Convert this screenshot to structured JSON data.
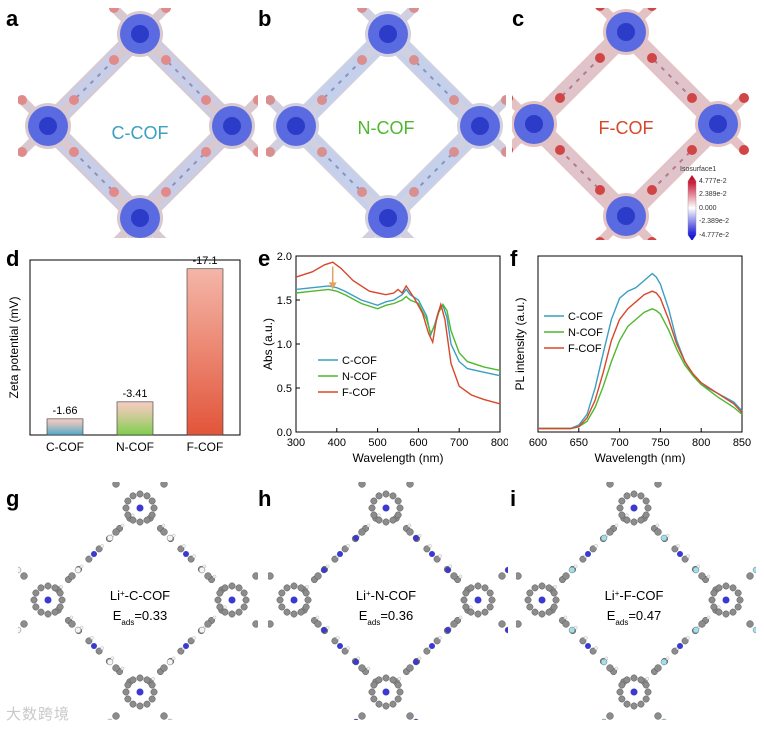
{
  "figure": {
    "letters": [
      "a",
      "b",
      "c",
      "d",
      "e",
      "f",
      "g",
      "h",
      "i"
    ],
    "esp_maps": [
      {
        "label": "C-COF",
        "label_color": "#3a9fc2"
      },
      {
        "label": "N-COF",
        "label_color": "#4fb82e"
      },
      {
        "label": "F-COF",
        "label_color": "#d9472b"
      }
    ],
    "colorbar": {
      "title": "Isosurface1",
      "ticks": [
        "4.777e-2",
        "2.389e-2",
        "0.000",
        "-2.389e-2",
        "-4.777e-2"
      ]
    },
    "structures": [
      {
        "label_prefix": "Li",
        "label_sup": "+",
        "label_suffix": "-C-COF",
        "eads_prefix": "E",
        "eads_sub": "ads",
        "eads_value": "=0.33"
      },
      {
        "label_prefix": "Li",
        "label_sup": "+",
        "label_suffix": "-N-COF",
        "eads_prefix": "E",
        "eads_sub": "ads",
        "eads_value": "=0.36"
      },
      {
        "label_prefix": "Li",
        "label_sup": "+",
        "label_suffix": "-F-COF",
        "eads_prefix": "E",
        "eads_sub": "ads",
        "eads_value": "=0.47"
      }
    ],
    "watermark": "大数跨境"
  },
  "chart_data": [
    {
      "type": "bar",
      "panel": "d",
      "ylabel": "Zeta potential (mV)",
      "categories": [
        "C-COF",
        "N-COF",
        "F-COF"
      ],
      "values": [
        -1.66,
        -3.41,
        -17.1
      ],
      "value_labels": [
        "-1.66",
        "-3.41",
        "-17.1"
      ],
      "colors": [
        "#4aa9c8",
        "#7ccf4a",
        "#e2553a"
      ],
      "ylim": [
        0,
        -18
      ]
    },
    {
      "type": "line",
      "panel": "e",
      "xlabel": "Wavelength (nm)",
      "ylabel": "Abs (a.u.)",
      "xlim": [
        300,
        800
      ],
      "ylim": [
        0,
        2.0
      ],
      "xticks": [
        "300",
        "400",
        "500",
        "600",
        "700",
        "800"
      ],
      "yticks": [
        "0.0",
        "0.5",
        "1.0",
        "1.5",
        "2.0"
      ],
      "series": [
        {
          "name": "C-COF",
          "color": "#3a9fc2",
          "x": [
            300,
            340,
            380,
            400,
            420,
            460,
            500,
            520,
            540,
            560,
            570,
            580,
            600,
            620,
            630,
            640,
            650,
            660,
            670,
            680,
            700,
            720,
            760,
            800
          ],
          "y": [
            1.62,
            1.64,
            1.66,
            1.64,
            1.6,
            1.5,
            1.44,
            1.48,
            1.5,
            1.56,
            1.62,
            1.56,
            1.5,
            1.32,
            1.1,
            1.22,
            1.38,
            1.44,
            1.3,
            1.0,
            0.8,
            0.72,
            0.68,
            0.64
          ]
        },
        {
          "name": "N-COF",
          "color": "#4fb82e",
          "x": [
            300,
            340,
            380,
            400,
            420,
            460,
            500,
            520,
            540,
            560,
            570,
            580,
            600,
            620,
            630,
            640,
            650,
            660,
            670,
            680,
            700,
            720,
            760,
            800
          ],
          "y": [
            1.58,
            1.6,
            1.62,
            1.6,
            1.56,
            1.46,
            1.4,
            1.44,
            1.46,
            1.5,
            1.54,
            1.5,
            1.46,
            1.28,
            1.12,
            1.2,
            1.36,
            1.45,
            1.38,
            1.15,
            0.9,
            0.8,
            0.74,
            0.7
          ]
        },
        {
          "name": "F-COF",
          "color": "#d9472b",
          "x": [
            300,
            340,
            370,
            390,
            410,
            440,
            480,
            520,
            540,
            550,
            560,
            570,
            590,
            610,
            625,
            635,
            645,
            655,
            665,
            680,
            700,
            730,
            760,
            800
          ],
          "y": [
            1.76,
            1.82,
            1.9,
            1.93,
            1.86,
            1.72,
            1.6,
            1.56,
            1.58,
            1.62,
            1.58,
            1.66,
            1.52,
            1.35,
            1.12,
            1.02,
            1.3,
            1.45,
            1.28,
            0.78,
            0.52,
            0.42,
            0.37,
            0.32
          ]
        }
      ]
    },
    {
      "type": "line",
      "panel": "f",
      "xlabel": "Wavelength (nm)",
      "ylabel": "PL intensity (a.u.)",
      "xlim": [
        600,
        850
      ],
      "ylim": [
        0,
        1.0
      ],
      "xticks": [
        "600",
        "650",
        "700",
        "750",
        "800",
        "850"
      ],
      "series": [
        {
          "name": "C-COF",
          "color": "#3a9fc2",
          "x": [
            600,
            640,
            650,
            660,
            670,
            680,
            690,
            700,
            710,
            720,
            730,
            740,
            745,
            750,
            760,
            770,
            780,
            790,
            800,
            820,
            840,
            850
          ],
          "y": [
            0.02,
            0.02,
            0.04,
            0.1,
            0.25,
            0.45,
            0.64,
            0.76,
            0.8,
            0.82,
            0.86,
            0.9,
            0.88,
            0.84,
            0.7,
            0.52,
            0.4,
            0.32,
            0.27,
            0.22,
            0.17,
            0.12
          ]
        },
        {
          "name": "N-COF",
          "color": "#4fb82e",
          "x": [
            600,
            640,
            650,
            660,
            670,
            680,
            690,
            700,
            710,
            720,
            730,
            740,
            745,
            750,
            760,
            770,
            780,
            790,
            800,
            820,
            840,
            850
          ],
          "y": [
            0.02,
            0.02,
            0.03,
            0.06,
            0.14,
            0.26,
            0.4,
            0.52,
            0.6,
            0.64,
            0.68,
            0.7,
            0.69,
            0.67,
            0.58,
            0.47,
            0.38,
            0.32,
            0.27,
            0.2,
            0.14,
            0.1
          ]
        },
        {
          "name": "F-COF",
          "color": "#d9472b",
          "x": [
            600,
            640,
            650,
            660,
            670,
            680,
            690,
            700,
            710,
            720,
            730,
            740,
            745,
            750,
            760,
            770,
            780,
            790,
            800,
            820,
            840,
            850
          ],
          "y": [
            0.02,
            0.02,
            0.03,
            0.08,
            0.18,
            0.34,
            0.52,
            0.64,
            0.7,
            0.74,
            0.78,
            0.8,
            0.79,
            0.76,
            0.64,
            0.5,
            0.4,
            0.33,
            0.28,
            0.22,
            0.16,
            0.11
          ]
        }
      ]
    }
  ]
}
